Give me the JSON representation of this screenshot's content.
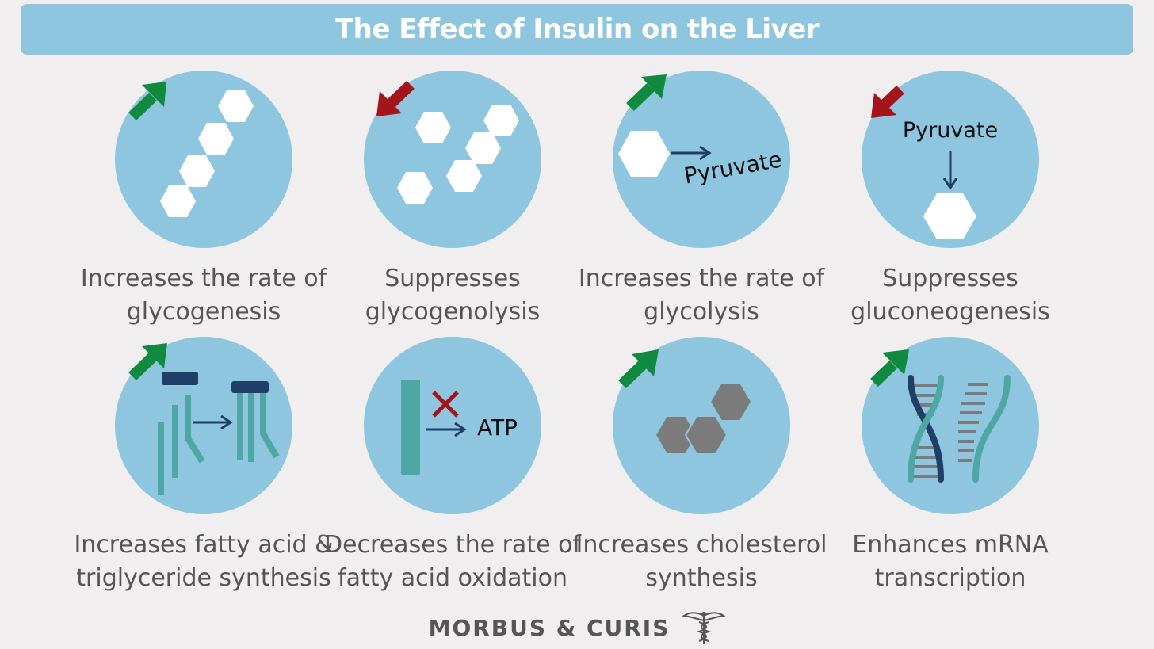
{
  "title": "The Effect of Insulin on the Liver",
  "colors": {
    "background": "#f0eeee",
    "accent": "#8ec6df",
    "increase_arrow": "#0f8a3e",
    "decrease_arrow": "#a3141b",
    "dark_blue": "#1f3f66",
    "teal": "#4fa7a3",
    "gray_molecule": "#7b7b7b",
    "text": "#555555"
  },
  "effects": [
    {
      "caption_line1": "Increases the rate of",
      "caption_line2": "glycogenesis",
      "direction": "increase",
      "icon": "glycogen-chain-icon"
    },
    {
      "caption_line1": "Suppresses",
      "caption_line2": "glycogenolysis",
      "direction": "decrease",
      "icon": "scattered-glucose-icon"
    },
    {
      "caption_line1": "Increases the rate of",
      "caption_line2": "glycolysis",
      "direction": "increase",
      "icon": "glucose-to-pyruvate-icon",
      "label": "Pyruvate"
    },
    {
      "caption_line1": "Suppresses",
      "caption_line2": "gluconeogenesis",
      "direction": "decrease",
      "icon": "pyruvate-to-glucose-icon",
      "label": "Pyruvate"
    },
    {
      "caption_line1": "Increases fatty acid &",
      "caption_line2": "triglyceride synthesis",
      "direction": "increase",
      "icon": "triglyceride-assembly-icon"
    },
    {
      "caption_line1": "Decreases the rate of",
      "caption_line2": "fatty acid oxidation",
      "direction": "none",
      "icon": "blocked-atp-icon",
      "label": "ATP"
    },
    {
      "caption_line1": "Increases cholesterol",
      "caption_line2": "synthesis",
      "direction": "increase",
      "icon": "cholesterol-ring-icon"
    },
    {
      "caption_line1": "Enhances mRNA",
      "caption_line2": "transcription",
      "direction": "increase",
      "icon": "dna-helix-icon"
    }
  ],
  "footer": {
    "brand": "MORBUS & CURIS",
    "logo_icon": "caduceus-icon"
  }
}
